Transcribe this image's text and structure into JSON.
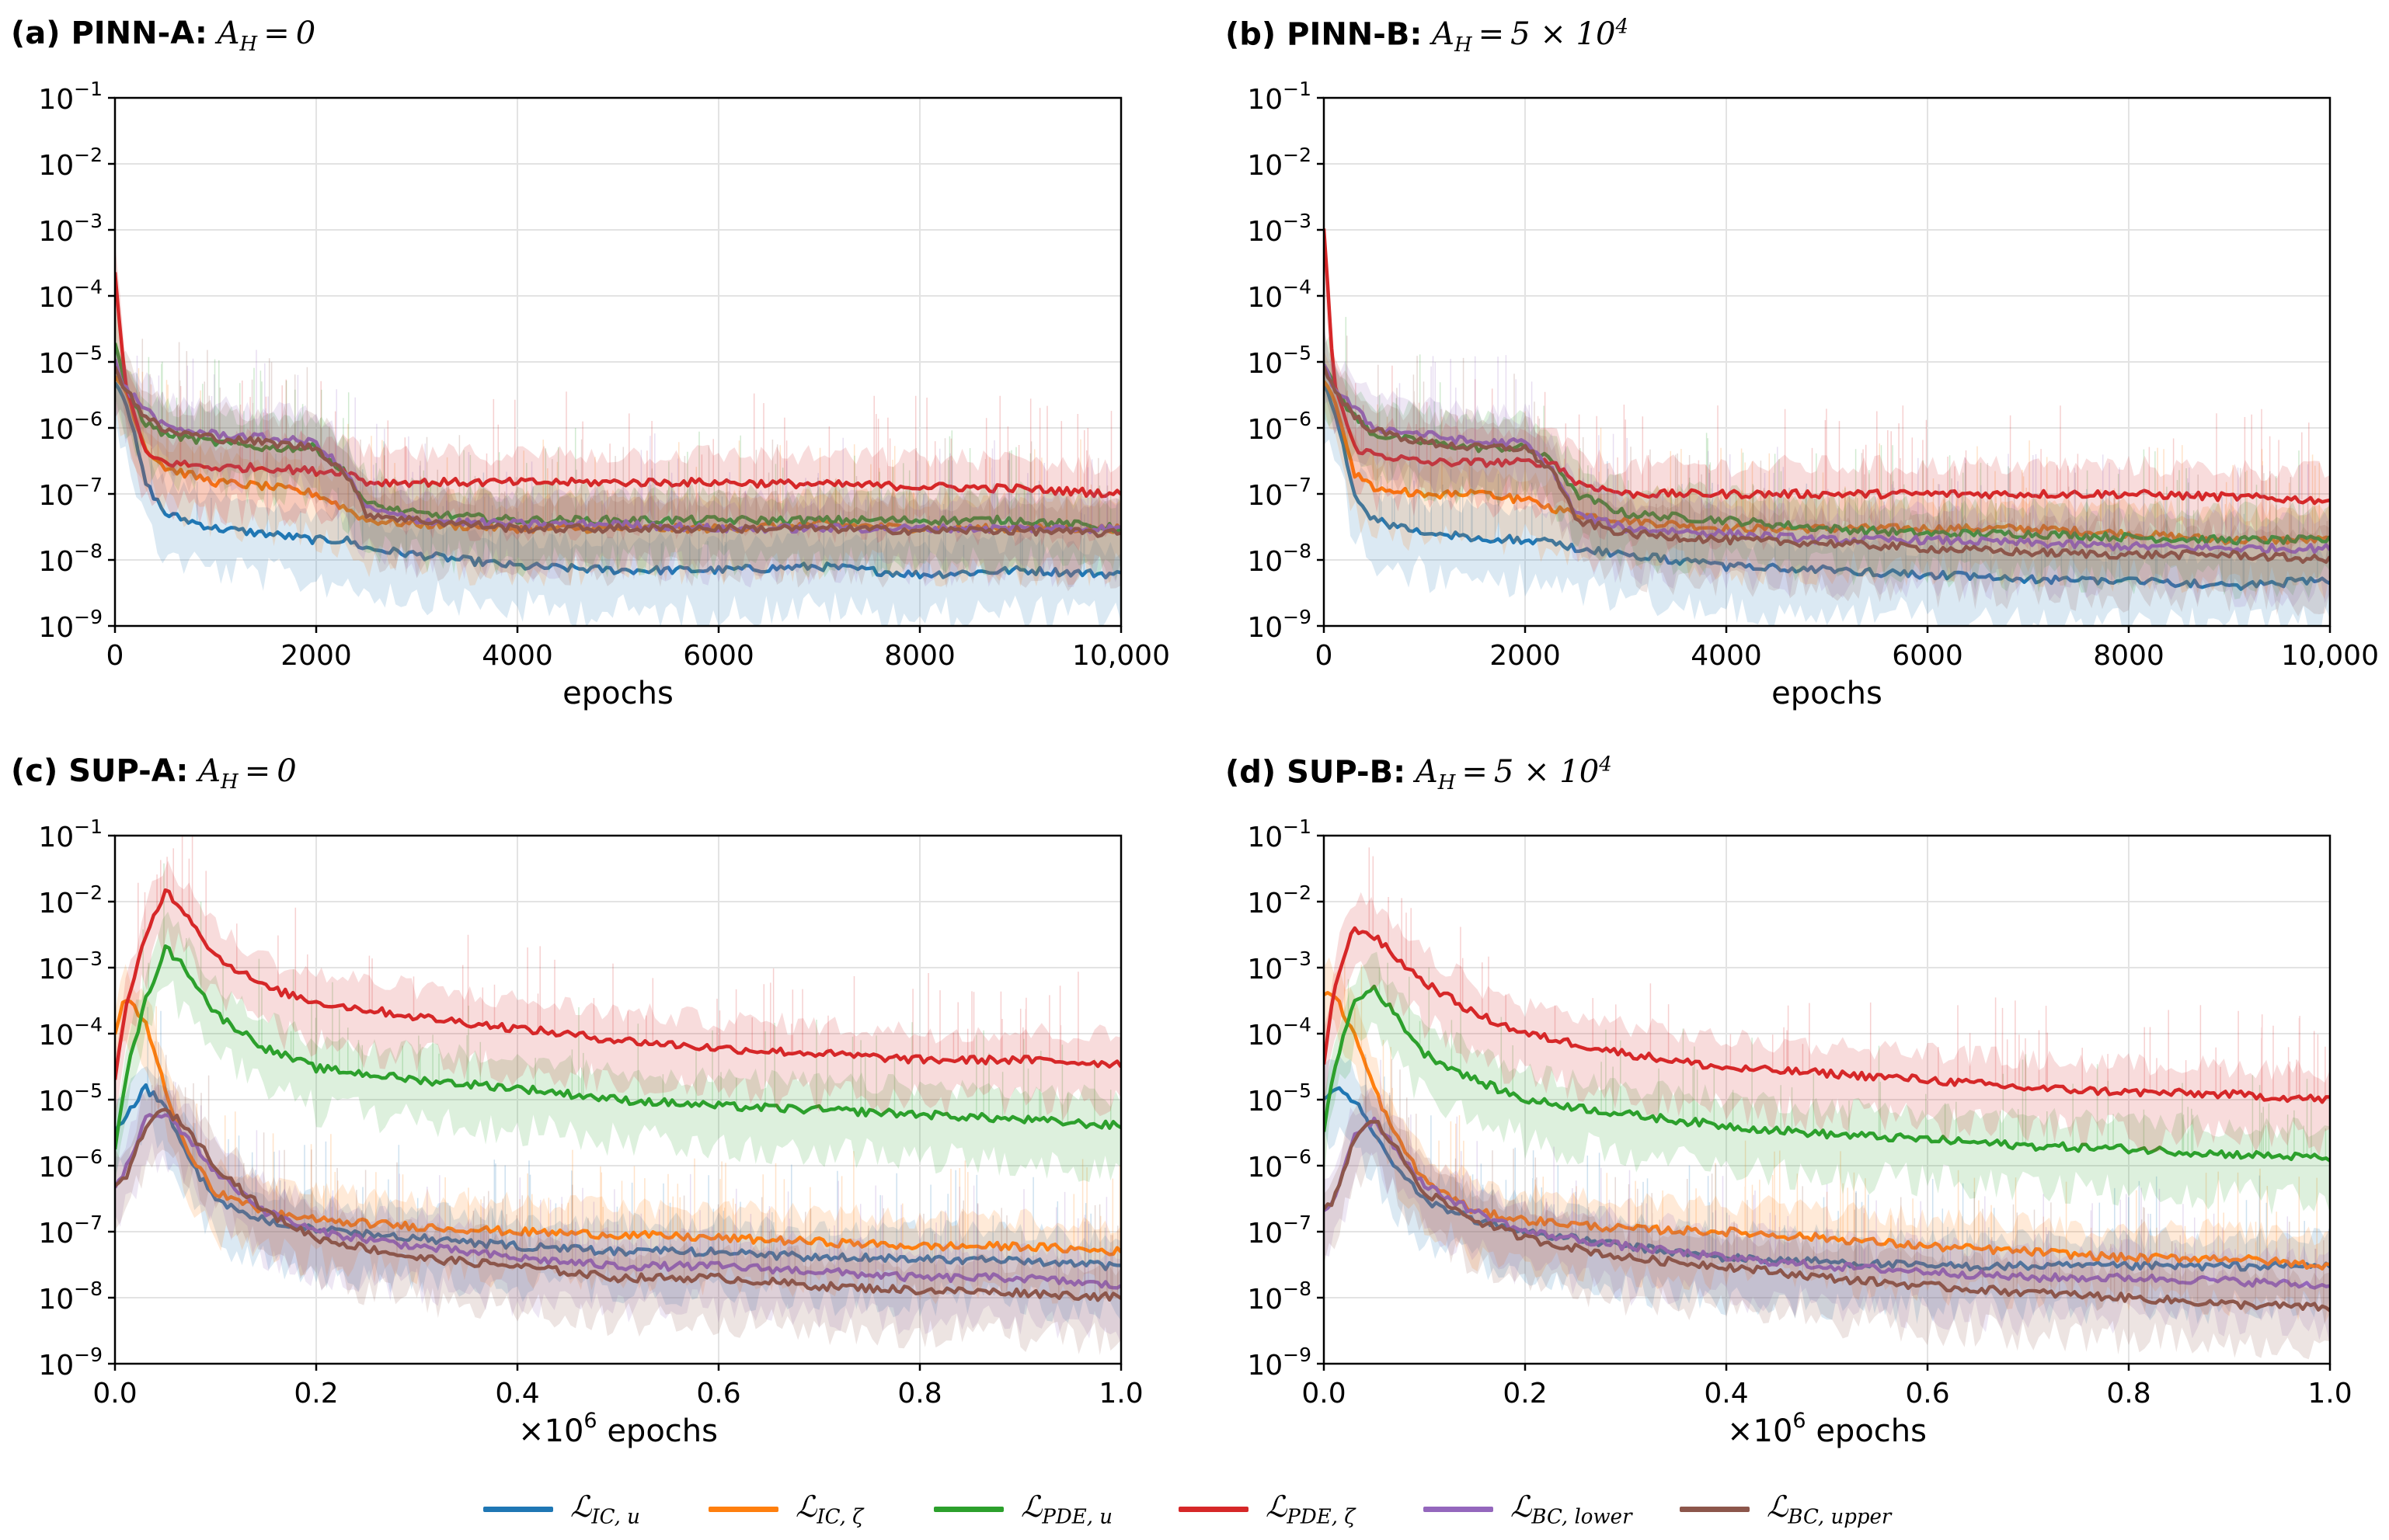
{
  "colors": {
    "ic_u": "#1f77b4",
    "ic_zeta": "#ff7f0e",
    "pde_u": "#2ca02c",
    "pde_zeta": "#d62728",
    "bc_lower": "#9467bd",
    "bc_upper": "#8c564b"
  },
  "legend": [
    {
      "key": "ic_u",
      "label": "ℒIC, u"
    },
    {
      "key": "ic_zeta",
      "label": "ℒIC, ζ"
    },
    {
      "key": "pde_u",
      "label": "ℒPDE, u"
    },
    {
      "key": "pde_zeta",
      "label": "ℒPDE, ζ"
    },
    {
      "key": "bc_lower",
      "label": "ℒBC, lower"
    },
    {
      "key": "bc_upper",
      "label": "ℒBC, upper"
    }
  ],
  "chart_data": [
    {
      "type": "line",
      "panel": "(a)",
      "title_bold": "(a) PINN-A:",
      "title_eq": "AH = 0",
      "xlabel": "epochs",
      "xlim": [
        0,
        10000
      ],
      "yscale": "log",
      "ylim": [
        1e-09,
        0.1
      ],
      "xticks": [
        "0",
        "2000",
        "4000",
        "6000",
        "8000",
        "10,000"
      ],
      "xtick_values": [
        0,
        2000,
        4000,
        6000,
        8000,
        10000
      ],
      "yticks": [
        "10−1",
        "10−2",
        "10−3",
        "10−4",
        "10−5",
        "10−6",
        "10−7",
        "10−8",
        "10−9"
      ],
      "grid": true,
      "x": [
        0,
        100,
        300,
        500,
        1000,
        1500,
        2000,
        2300,
        2500,
        3000,
        4000,
        5000,
        6000,
        7000,
        8000,
        9000,
        10000
      ],
      "series": [
        {
          "key": "ic_u",
          "values": [
            5e-06,
            3e-06,
            1.5e-07,
            5e-08,
            3e-08,
            2.5e-08,
            2e-08,
            2e-08,
            1.5e-08,
            1.2e-08,
            8e-09,
            7e-09,
            7e-09,
            8e-09,
            6e-09,
            7e-09,
            6e-09
          ]
        },
        {
          "key": "ic_zeta",
          "values": [
            6e-06,
            4e-06,
            5e-07,
            2.5e-07,
            1.5e-07,
            1.3e-07,
            1e-07,
            6e-08,
            4e-08,
            3.5e-08,
            3e-08,
            3e-08,
            3e-08,
            3.5e-08,
            3e-08,
            3e-08,
            3e-08
          ]
        },
        {
          "key": "pde_u",
          "values": [
            2e-05,
            4e-06,
            1.2e-06,
            8e-07,
            6e-07,
            5e-07,
            5e-07,
            2e-07,
            7e-08,
            5e-08,
            4e-08,
            4e-08,
            4e-08,
            4e-08,
            4e-08,
            4e-08,
            3e-08
          ]
        },
        {
          "key": "pde_zeta",
          "values": [
            0.0002,
            5e-06,
            4e-07,
            3e-07,
            2.5e-07,
            2.5e-07,
            2.2e-07,
            2.2e-07,
            1.5e-07,
            1.5e-07,
            1.5e-07,
            1.5e-07,
            1.5e-07,
            1.4e-07,
            1.3e-07,
            1.2e-07,
            1e-07
          ]
        },
        {
          "key": "bc_lower",
          "values": [
            1e-05,
            4e-06,
            2e-06,
            1e-06,
            8e-07,
            7e-07,
            6e-07,
            2e-07,
            6e-08,
            4e-08,
            3.5e-08,
            3.5e-08,
            3e-08,
            3e-08,
            3e-08,
            3e-08,
            3e-08
          ]
        },
        {
          "key": "bc_upper",
          "values": [
            8e-06,
            4e-06,
            1.5e-06,
            9e-07,
            7e-07,
            6e-07,
            5e-07,
            2e-07,
            5e-08,
            4e-08,
            3e-08,
            3e-08,
            3e-08,
            3e-08,
            2.8e-08,
            2.8e-08,
            2.5e-08
          ]
        }
      ]
    },
    {
      "type": "line",
      "panel": "(b)",
      "title_bold": "(b) PINN-B:",
      "title_eq": "AH = 5 × 104",
      "xlabel": "epochs",
      "xlim": [
        0,
        10000
      ],
      "yscale": "log",
      "ylim": [
        1e-09,
        0.1
      ],
      "xticks": [
        "0",
        "2000",
        "4000",
        "6000",
        "8000",
        "10,000"
      ],
      "xtick_values": [
        0,
        2000,
        4000,
        6000,
        8000,
        10000
      ],
      "yticks": [
        "10−1",
        "10−2",
        "10−3",
        "10−4",
        "10−5",
        "10−6",
        "10−7",
        "10−8",
        "10−9"
      ],
      "grid": true,
      "x": [
        0,
        100,
        300,
        500,
        1000,
        1500,
        2000,
        2300,
        2500,
        3000,
        4000,
        5000,
        6000,
        7000,
        8000,
        9000,
        10000
      ],
      "series": [
        {
          "key": "ic_u",
          "values": [
            4e-06,
            2e-06,
            1e-07,
            4e-08,
            2.5e-08,
            2.2e-08,
            2e-08,
            1.8e-08,
            1.5e-08,
            1.2e-08,
            8e-09,
            7e-09,
            6e-09,
            5e-09,
            5e-09,
            4e-09,
            5e-09
          ]
        },
        {
          "key": "ic_zeta",
          "values": [
            5e-06,
            3e-06,
            2e-07,
            1.2e-07,
            1e-07,
            1e-07,
            8e-08,
            6e-08,
            5e-08,
            4e-08,
            3e-08,
            3e-08,
            3e-08,
            3e-08,
            2.5e-08,
            2e-08,
            2e-08
          ]
        },
        {
          "key": "pde_u",
          "values": [
            1e-05,
            4e-06,
            1.5e-06,
            8e-07,
            6e-07,
            5e-07,
            5e-07,
            3e-07,
            1e-07,
            5e-08,
            4e-08,
            3e-08,
            2.5e-08,
            2.5e-08,
            2.2e-08,
            2e-08,
            2e-08
          ]
        },
        {
          "key": "pde_zeta",
          "values": [
            0.001,
            5e-06,
            5e-07,
            4e-07,
            3e-07,
            3e-07,
            3e-07,
            3e-07,
            1.5e-07,
            1e-07,
            1e-07,
            1e-07,
            1e-07,
            1e-07,
            1e-07,
            9e-08,
            8e-08
          ]
        },
        {
          "key": "bc_lower",
          "values": [
            1e-05,
            4e-06,
            2e-06,
            1e-06,
            8e-07,
            6e-07,
            6e-07,
            2e-07,
            5e-08,
            3e-08,
            2.5e-08,
            2e-08,
            2e-08,
            1.8e-08,
            1.6e-08,
            1.5e-08,
            1.5e-08
          ]
        },
        {
          "key": "bc_upper",
          "values": [
            8e-06,
            4e-06,
            1.5e-06,
            9e-07,
            6e-07,
            5e-07,
            5e-07,
            2e-07,
            4e-08,
            2.5e-08,
            2e-08,
            1.8e-08,
            1.5e-08,
            1.3e-08,
            1.2e-08,
            1.2e-08,
            1e-08
          ]
        }
      ]
    },
    {
      "type": "line",
      "panel": "(c)",
      "title_bold": "(c) SUP-A:",
      "title_eq": "AH = 0",
      "xlabel": "×106 epochs",
      "xlim": [
        0,
        1.0
      ],
      "yscale": "log",
      "ylim": [
        1e-09,
        0.1
      ],
      "xticks": [
        "0.0",
        "0.2",
        "0.4",
        "0.6",
        "0.8",
        "1.0"
      ],
      "xtick_values": [
        0,
        0.2,
        0.4,
        0.6,
        0.8,
        1.0
      ],
      "yticks": [
        "10−1",
        "10−2",
        "10−3",
        "10−4",
        "10−5",
        "10−6",
        "10−7",
        "10−8",
        "10−9"
      ],
      "grid": true,
      "x": [
        0,
        0.01,
        0.03,
        0.05,
        0.07,
        0.1,
        0.15,
        0.2,
        0.3,
        0.4,
        0.5,
        0.6,
        0.7,
        0.8,
        0.9,
        1.0
      ],
      "series": [
        {
          "key": "ic_u",
          "values": [
            3e-06,
            5e-06,
            1.5e-05,
            8e-06,
            1.5e-06,
            3e-07,
            1.5e-07,
            1.1e-07,
            8e-08,
            6e-08,
            5e-08,
            5e-08,
            4e-08,
            4e-08,
            3.5e-08,
            3e-08
          ]
        },
        {
          "key": "ic_zeta",
          "values": [
            0.0001,
            0.00035,
            0.00015,
            1.5e-05,
            2e-06,
            4e-07,
            2e-07,
            1.5e-07,
            1.2e-07,
            1e-07,
            9e-08,
            8e-08,
            7e-08,
            6e-08,
            6e-08,
            5e-08
          ]
        },
        {
          "key": "pde_u",
          "values": [
            2e-06,
            2e-05,
            0.0003,
            0.002,
            0.001,
            0.0002,
            6e-05,
            3e-05,
            2e-05,
            1.5e-05,
            1e-05,
            8e-06,
            7e-06,
            6e-06,
            5e-06,
            4e-06
          ]
        },
        {
          "key": "pde_zeta",
          "values": [
            2e-05,
            0.0002,
            0.003,
            0.015,
            0.007,
            0.0015,
            0.0005,
            0.0003,
            0.00018,
            0.00012,
            8e-05,
            6e-05,
            5e-05,
            4e-05,
            4e-05,
            3.5e-05
          ]
        },
        {
          "key": "bc_lower",
          "values": [
            5e-07,
            8e-07,
            5e-06,
            6e-06,
            3e-06,
            8e-07,
            2e-07,
            1e-07,
            6e-08,
            4e-08,
            3e-08,
            3e-08,
            2.5e-08,
            2e-08,
            2e-08,
            1.5e-08
          ]
        },
        {
          "key": "bc_upper",
          "values": [
            5e-07,
            6e-07,
            4e-06,
            7e-06,
            4e-06,
            1e-06,
            2e-07,
            8e-08,
            4e-08,
            3e-08,
            2e-08,
            2e-08,
            1.5e-08,
            1.3e-08,
            1.2e-08,
            1e-08
          ]
        }
      ]
    },
    {
      "type": "line",
      "panel": "(d)",
      "title_bold": "(d) SUP-B:",
      "title_eq": "AH = 5 × 104",
      "xlabel": "×106 epochs",
      "xlim": [
        0,
        1.0
      ],
      "yscale": "log",
      "ylim": [
        1e-09,
        0.1
      ],
      "xticks": [
        "0.0",
        "0.2",
        "0.4",
        "0.6",
        "0.8",
        "1.0"
      ],
      "xtick_values": [
        0,
        0.2,
        0.4,
        0.6,
        0.8,
        1.0
      ],
      "yticks": [
        "10−1",
        "10−2",
        "10−3",
        "10−4",
        "10−5",
        "10−6",
        "10−7",
        "10−8",
        "10−9"
      ],
      "grid": true,
      "x": [
        0,
        0.01,
        0.03,
        0.05,
        0.07,
        0.1,
        0.15,
        0.2,
        0.3,
        0.4,
        0.5,
        0.6,
        0.7,
        0.8,
        0.9,
        1.0
      ],
      "series": [
        {
          "key": "ic_u",
          "values": [
            1e-05,
            1.5e-05,
            1e-05,
            3e-06,
            1e-06,
            3e-07,
            1.5e-07,
            1e-07,
            6e-08,
            4e-08,
            3.5e-08,
            3e-08,
            3e-08,
            3e-08,
            3e-08,
            3e-08
          ]
        },
        {
          "key": "ic_zeta",
          "values": [
            0.0004,
            0.0004,
            0.0001,
            1.5e-05,
            3e-06,
            6e-07,
            2e-07,
            1.5e-07,
            1.1e-07,
            1e-07,
            8e-08,
            6e-08,
            5e-08,
            4e-08,
            4e-08,
            3e-08
          ]
        },
        {
          "key": "pde_u",
          "values": [
            3e-06,
            3e-05,
            0.0003,
            0.0005,
            0.0002,
            5e-05,
            2e-05,
            1e-05,
            6e-06,
            4e-06,
            3e-06,
            2.5e-06,
            2e-06,
            1.8e-06,
            1.5e-06,
            1.3e-06
          ]
        },
        {
          "key": "pde_zeta",
          "values": [
            3e-05,
            0.0005,
            0.004,
            0.003,
            0.0015,
            0.0006,
            0.0002,
            0.0001,
            5e-05,
            3e-05,
            2.5e-05,
            2e-05,
            1.5e-05,
            1.3e-05,
            1.2e-05,
            1e-05
          ]
        },
        {
          "key": "bc_lower",
          "values": [
            2e-07,
            3e-07,
            3e-06,
            5e-06,
            2e-06,
            5e-07,
            2e-07,
            1e-07,
            6e-08,
            4e-08,
            3e-08,
            2.5e-08,
            2e-08,
            2e-08,
            1.8e-08,
            1.5e-08
          ]
        },
        {
          "key": "bc_upper",
          "values": [
            2e-07,
            3e-07,
            2.5e-06,
            5e-06,
            2e-06,
            4e-07,
            1.5e-07,
            8e-08,
            4e-08,
            3e-08,
            2e-08,
            1.5e-08,
            1.2e-08,
            1e-08,
            8e-09,
            7e-09
          ]
        }
      ]
    }
  ]
}
